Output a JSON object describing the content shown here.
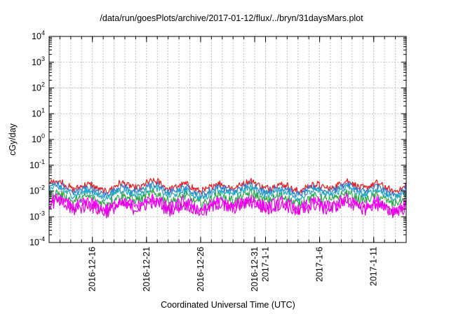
{
  "chart_data": {
    "type": "line",
    "title": "/data/run/goesPlots/archive/2017-01-12/flux/../bryn/31daysMars.plot",
    "xlabel": "Coordinated Universal Time (UTC)",
    "ylabel": "cGy/day",
    "yscale": "log",
    "ylim": [
      0.0001,
      10000
    ],
    "y_ticks": [
      {
        "base": "10",
        "exp": "-4"
      },
      {
        "base": "10",
        "exp": "-3"
      },
      {
        "base": "10",
        "exp": "-2"
      },
      {
        "base": "10",
        "exp": "-1"
      },
      {
        "base": "10",
        "exp": "0"
      },
      {
        "base": "10",
        "exp": "1"
      },
      {
        "base": "10",
        "exp": "2"
      },
      {
        "base": "10",
        "exp": "3"
      },
      {
        "base": "10",
        "exp": "4"
      }
    ],
    "xlim": [
      "2016-12-12",
      "2017-01-14"
    ],
    "x_ticks": [
      "2016-12-16",
      "2016-12-21",
      "2016-12-26",
      "2016-12-31",
      "2017-1-1",
      "2017-1-6",
      "2017-1-11"
    ],
    "grid": true,
    "series": [
      {
        "color": "#e8191d",
        "level": 0.0155,
        "spread": 0.12
      },
      {
        "color": "#2b7bd6",
        "level": 0.0115,
        "spread": 0.12
      },
      {
        "color": "#1fa6c0",
        "level": 0.0085,
        "spread": 0.12
      },
      {
        "color": "#2aa84a",
        "level": 0.0052,
        "spread": 0.16
      },
      {
        "color": "#ff00ff",
        "level": 0.0031,
        "spread": 0.22
      },
      {
        "color": "#e000e0",
        "level": 0.0024,
        "spread": 0.24
      }
    ]
  }
}
